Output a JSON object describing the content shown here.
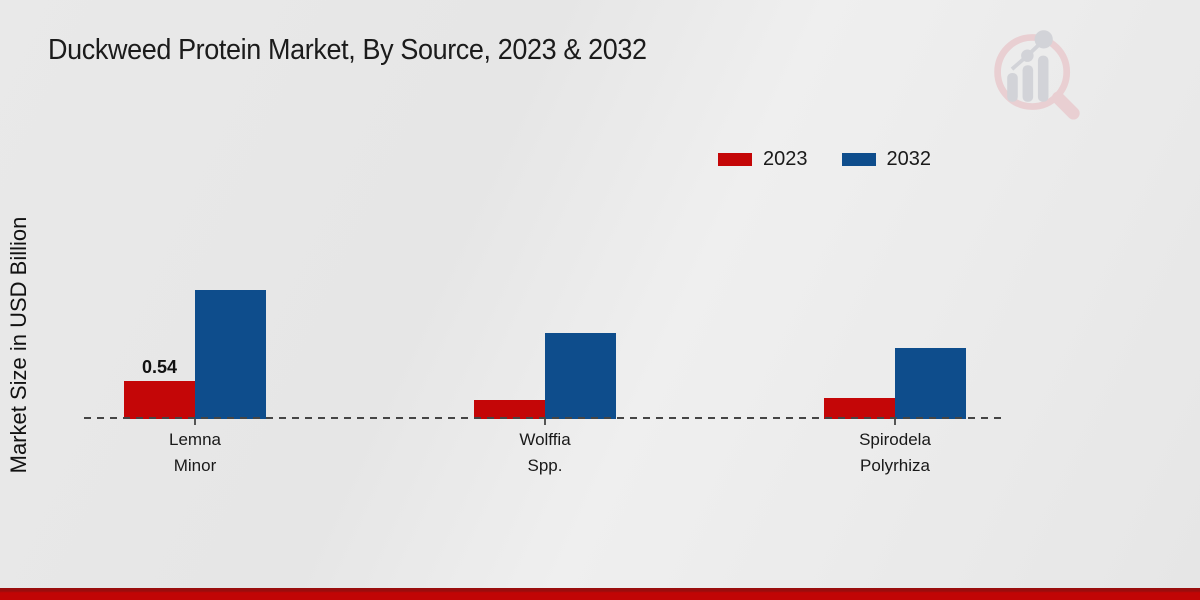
{
  "page": {
    "title": "Duckweed Protein Market, By Source, 2023 & 2032",
    "y_axis_title": "Market Size in USD Billion"
  },
  "legend": {
    "items": [
      {
        "label": "2023",
        "color": "#c40607"
      },
      {
        "label": "2032",
        "color": "#0e4d8c"
      }
    ]
  },
  "footer": {
    "accent_color": "#c10505"
  },
  "watermark": {
    "icon": "magnifier-bar-chart-logo",
    "ring_color": "#e9cfd2",
    "bars_color": "#d2d3d8"
  },
  "chart_data": {
    "type": "bar",
    "title": "Duckweed Protein Market, By Source, 2023 & 2032",
    "xlabel": "",
    "ylabel": "Market Size in USD Billion",
    "categories": [
      [
        "Lemna",
        "Minor"
      ],
      [
        "Wolffia",
        "Spp."
      ],
      [
        "Spirodela",
        "Polyrhiza"
      ]
    ],
    "series": [
      {
        "name": "2023",
        "color": "#c40607",
        "values": [
          0.54,
          0.27,
          0.3
        ],
        "data_labels": [
          "0.54",
          "",
          ""
        ]
      },
      {
        "name": "2032",
        "color": "#0e4d8c",
        "values": [
          1.83,
          1.22,
          1.01
        ],
        "data_labels": [
          "",
          "",
          ""
        ]
      }
    ],
    "grid": false,
    "legend_position": "top-right",
    "x_axis_style": "dashed-baseline",
    "y_axis_ticks_visible": false
  }
}
